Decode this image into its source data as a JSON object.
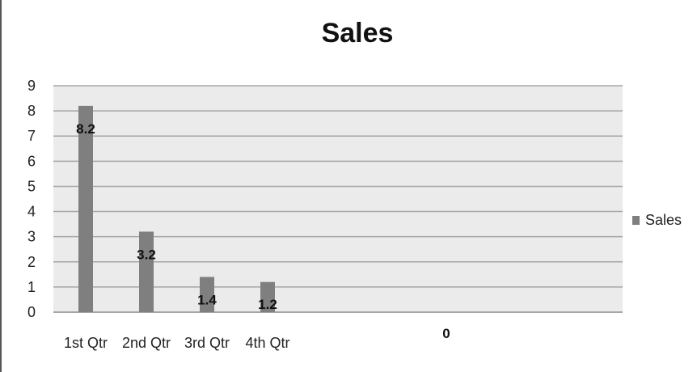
{
  "chart_data": {
    "type": "bar",
    "title": "Sales",
    "categories": [
      "1st Qtr",
      "2nd Qtr",
      "3rd Qtr",
      "4th Qtr",
      ""
    ],
    "series": [
      {
        "name": "Sales",
        "values": [
          8.2,
          3.2,
          1.4,
          1.2,
          0
        ],
        "data_labels": [
          "8.2",
          "3.2",
          "1.4",
          "1.2",
          "0"
        ]
      }
    ],
    "ylim": [
      0,
      9
    ],
    "yticks": [
      "0",
      "1",
      "2",
      "3",
      "4",
      "5",
      "6",
      "7",
      "8",
      "9"
    ],
    "grid": true,
    "legend_position": "right",
    "colors": {
      "bar": "#7f7f7f",
      "plot_background": "#ebebeb",
      "grid": "#a6a6a6"
    }
  }
}
